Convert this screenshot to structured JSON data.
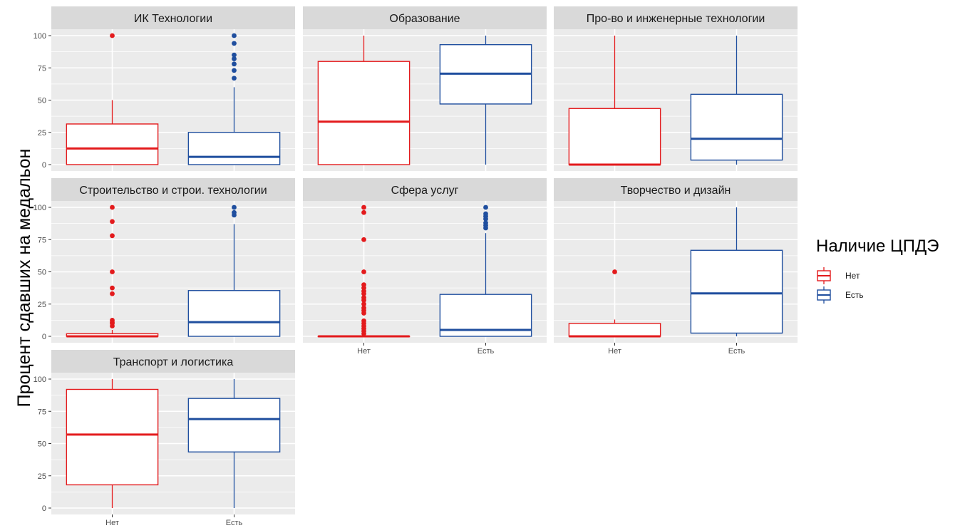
{
  "chart_data": {
    "type": "boxplot",
    "ylabel": "Процент сдавших на медальон",
    "categories": [
      "Нет",
      "Есть"
    ],
    "ylim": [
      0,
      100
    ],
    "yticks": [
      0,
      25,
      50,
      75,
      100
    ],
    "legend": {
      "title": "Наличие ЦПДЭ",
      "position": "right",
      "items": [
        {
          "label": "Нет",
          "color": "#e31a1c"
        },
        {
          "label": "Есть",
          "color": "#1f4e9e"
        }
      ]
    },
    "facets": [
      {
        "title": "ИК Технологии",
        "boxes": [
          {
            "group": "Нет",
            "min": 0,
            "q1": 0,
            "median": 12.5,
            "q3": 31.5,
            "max": 50,
            "outliers": [
              100
            ]
          },
          {
            "group": "Есть",
            "min": 0,
            "q1": 0,
            "median": 6,
            "q3": 25,
            "max": 60,
            "outliers": [
              67,
              73,
              78,
              82,
              85,
              94,
              100
            ]
          }
        ]
      },
      {
        "title": "Образование",
        "boxes": [
          {
            "group": "Нет",
            "min": 0,
            "q1": 0,
            "median": 33.3,
            "q3": 80,
            "max": 100,
            "outliers": []
          },
          {
            "group": "Есть",
            "min": 0,
            "q1": 47,
            "median": 70.5,
            "q3": 93,
            "max": 100,
            "outliers": []
          }
        ]
      },
      {
        "title": "Про-во и инженерные технологии",
        "boxes": [
          {
            "group": "Нет",
            "min": 0,
            "q1": 0,
            "median": 0,
            "q3": 43.5,
            "max": 100,
            "outliers": []
          },
          {
            "group": "Есть",
            "min": 0,
            "q1": 3.5,
            "median": 20,
            "q3": 54.5,
            "max": 100,
            "outliers": []
          }
        ]
      },
      {
        "title": "Строительство и строи. технологии",
        "boxes": [
          {
            "group": "Нет",
            "min": 0,
            "q1": 0,
            "median": 0,
            "q3": 2,
            "max": 5,
            "outliers": [
              8,
              10,
              11,
              12.5,
              33,
              37.5,
              50,
              78,
              89,
              100
            ]
          },
          {
            "group": "Есть",
            "min": 0,
            "q1": 0,
            "median": 11,
            "q3": 35.5,
            "max": 87,
            "outliers": [
              94,
              96,
              100
            ]
          }
        ]
      },
      {
        "title": "Сфера услуг",
        "boxes": [
          {
            "group": "Нет",
            "min": 0,
            "q1": 0,
            "median": 0,
            "q3": 0,
            "max": 0,
            "outliers": [
              2,
              4,
              6,
              8,
              10,
              12,
              18,
              20,
              22,
              25,
              28,
              30,
              33,
              35,
              37.5,
              40,
              50,
              75,
              96,
              100
            ]
          },
          {
            "group": "Есть",
            "min": 0,
            "q1": 0,
            "median": 5,
            "q3": 32.5,
            "max": 80,
            "outliers": [
              84,
              86,
              88,
              91,
              93,
              95,
              100
            ]
          }
        ]
      },
      {
        "title": "Творчество и дизайн",
        "boxes": [
          {
            "group": "Нет",
            "min": 0,
            "q1": 0,
            "median": 0,
            "q3": 10,
            "max": 13,
            "outliers": [
              50
            ]
          },
          {
            "group": "Есть",
            "min": 0,
            "q1": 2.5,
            "median": 33.3,
            "q3": 66.7,
            "max": 100,
            "outliers": []
          }
        ]
      },
      {
        "title": "Транспорт и логистика",
        "boxes": [
          {
            "group": "Нет",
            "min": 0,
            "q1": 18,
            "median": 57,
            "q3": 92,
            "max": 100,
            "outliers": []
          },
          {
            "group": "Есть",
            "min": 0,
            "q1": 43.5,
            "median": 69,
            "q3": 85,
            "max": 100,
            "outliers": []
          }
        ]
      }
    ]
  }
}
